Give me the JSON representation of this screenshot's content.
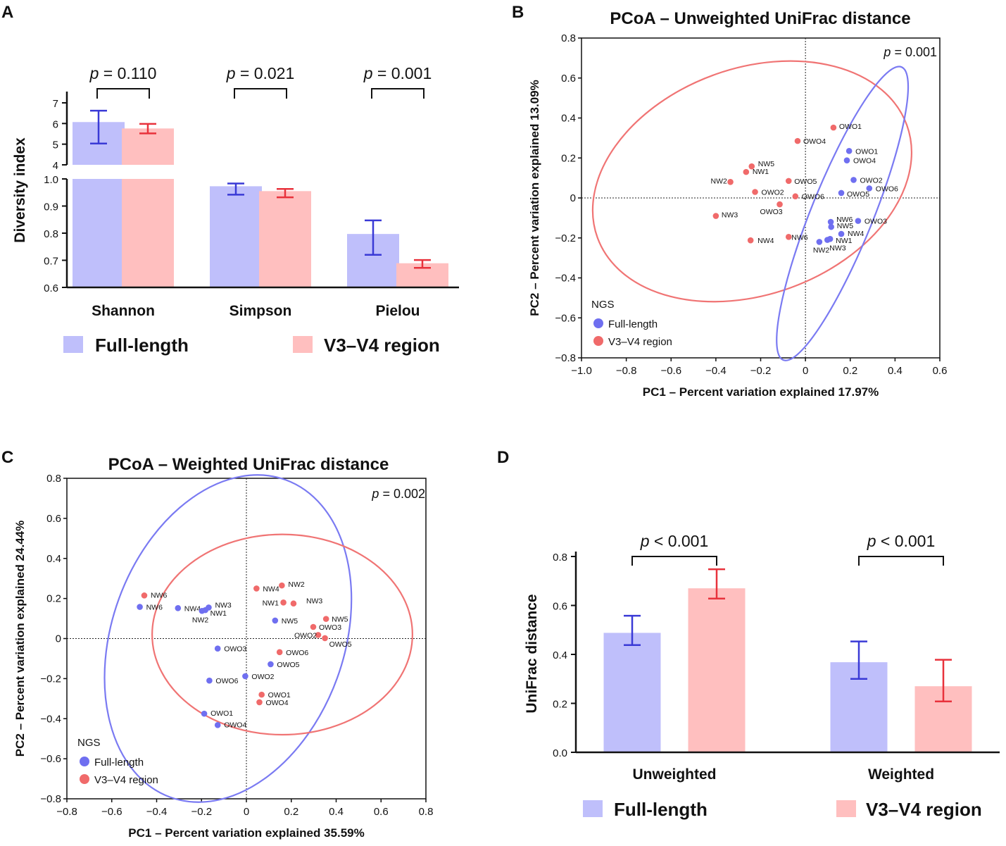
{
  "colors": {
    "full_bar": "#bfbffb",
    "v34_bar": "#ffbfbf",
    "full_line": "#3a3ad6",
    "v34_line": "#e8323c",
    "full_point": "#6f6ff0",
    "v34_point": "#f06a6a",
    "ellipse_full": "#7a7af2",
    "ellipse_v34": "#f07474"
  },
  "chart_data": [
    {
      "panel": "A",
      "type": "bar",
      "title": "",
      "ylabel": "Diversity index",
      "xlabel": "",
      "categories": [
        "Shannon",
        "Simpson",
        "Pielou"
      ],
      "series": [
        {
          "name": "Full-length",
          "values": [
            6.07,
            0.973,
            0.797
          ],
          "err_low": [
            5.03,
            0.942,
            0.72
          ],
          "err_high": [
            6.62,
            0.983,
            0.847
          ]
        },
        {
          "name": "V3–V4 region",
          "values": [
            5.76,
            0.955,
            0.689
          ],
          "err_low": [
            5.52,
            0.932,
            0.672
          ],
          "err_high": [
            5.98,
            0.963,
            0.701
          ]
        }
      ],
      "y_segments": [
        {
          "range": [
            4,
            7
          ],
          "ticks": [
            "4",
            "5",
            "6",
            "7"
          ]
        },
        {
          "range": [
            0.6,
            1.0
          ],
          "ticks": [
            "0.6",
            "0.7",
            "0.8",
            "0.9",
            "1.0"
          ]
        }
      ],
      "pvalues": [
        "0.110",
        "0.021",
        "0.001"
      ],
      "p_prefix": "p",
      "p_eq": " = ",
      "legend": [
        "Full-length",
        "V3–V4 region"
      ]
    },
    {
      "panel": "B",
      "type": "scatter",
      "title": "PCoA – Unweighted UniFrac distance",
      "xlabel": "PC1 – Percent variation explained 17.97%",
      "ylabel": "PC2 – Percent variation explained 13.09%",
      "xlim": [
        -1.0,
        0.6
      ],
      "ylim": [
        -0.8,
        0.8
      ],
      "xticks": [
        "−1.0",
        "−0.8",
        "−0.6",
        "−0.4",
        "−0.2",
        "0",
        "0.2",
        "0.4",
        "0.6"
      ],
      "yticks": [
        "−0.8",
        "−0.6",
        "−0.4",
        "−0.2",
        "0",
        "0.2",
        "0.4",
        "0.6",
        "0.8"
      ],
      "p_prefix": "p",
      "p_text": " = 0.001",
      "legend_title": "NGS",
      "legend": [
        "Full-length",
        "V3–V4 region"
      ],
      "series": [
        {
          "name": "Full-length",
          "points": [
            {
              "label": "OWO1",
              "x": 0.195,
              "y": 0.235
            },
            {
              "label": "OWO4",
              "x": 0.185,
              "y": 0.188
            },
            {
              "label": "OWO2",
              "x": 0.215,
              "y": 0.09
            },
            {
              "label": "OWO6",
              "x": 0.285,
              "y": 0.048
            },
            {
              "label": "OWO5",
              "x": 0.16,
              "y": 0.025
            },
            {
              "label": "OWO3",
              "x": 0.235,
              "y": -0.115
            },
            {
              "label": "NW6",
              "x": 0.113,
              "y": -0.12
            },
            {
              "label": "NW5",
              "x": 0.115,
              "y": -0.145
            },
            {
              "label": "NW4",
              "x": 0.16,
              "y": -0.18
            },
            {
              "label": "NW1",
              "x": 0.11,
              "y": -0.205
            },
            {
              "label": "NW2",
              "x": 0.062,
              "y": -0.22
            },
            {
              "label": "NW3",
              "x": 0.098,
              "y": -0.21
            }
          ]
        },
        {
          "name": "V3–V4 region",
          "points": [
            {
              "label": "OWO1",
              "x": 0.125,
              "y": 0.352
            },
            {
              "label": "OWO4",
              "x": -0.035,
              "y": 0.285
            },
            {
              "label": "NW5",
              "x": -0.24,
              "y": 0.158
            },
            {
              "label": "NW1",
              "x": -0.265,
              "y": 0.13
            },
            {
              "label": "NW2",
              "x": -0.335,
              "y": 0.08
            },
            {
              "label": "OWO5",
              "x": -0.075,
              "y": 0.085
            },
            {
              "label": "OWO2",
              "x": -0.225,
              "y": 0.03
            },
            {
              "label": "OWO6",
              "x": -0.045,
              "y": 0.008
            },
            {
              "label": "OWO3",
              "x": -0.115,
              "y": -0.032
            },
            {
              "label": "NW3",
              "x": -0.4,
              "y": -0.09
            },
            {
              "label": "NW6",
              "x": -0.075,
              "y": -0.195
            },
            {
              "label": "NW4",
              "x": -0.245,
              "y": -0.212
            }
          ]
        }
      ],
      "ellipses": [
        {
          "group": "V3–V4 region",
          "center": [
            -0.238,
            0.083
          ],
          "a": 0.735,
          "b": 0.566,
          "angle_deg": 20
        },
        {
          "group": "Full-length",
          "center": [
            0.165,
            -0.078
          ],
          "a": 0.705,
          "b": 0.155,
          "angle_deg": 68
        }
      ]
    },
    {
      "panel": "C",
      "type": "scatter",
      "title": "PCoA – Weighted UniFrac distance",
      "xlabel": "PC1 –  Percent variation explained 35.59%",
      "ylabel": "PC2 –  Percent variation explained 24.44%",
      "xlim": [
        -0.8,
        0.8
      ],
      "ylim": [
        -0.8,
        0.8
      ],
      "xticks": [
        "−0.8",
        "−0.6",
        "−0.4",
        "−0.2",
        "0",
        "0.2",
        "0.4",
        "0.6",
        "0.8"
      ],
      "yticks": [
        "−0.8",
        "−0.6",
        "−0.4",
        "−0.2",
        "0",
        "0.2",
        "0.4",
        "0.6",
        "0.8"
      ],
      "p_prefix": "p",
      "p_text": " = 0.002",
      "legend_title": "NGS",
      "legend": [
        "Full-length",
        "V3–V4 region"
      ],
      "series": [
        {
          "name": "Full-length",
          "points": [
            {
              "label": "NW6",
              "x": -0.475,
              "y": 0.158
            },
            {
              "label": "NW4",
              "x": -0.305,
              "y": 0.152
            },
            {
              "label": "NW3",
              "x": -0.168,
              "y": 0.155
            },
            {
              "label": "NW2",
              "x": -0.198,
              "y": 0.138
            },
            {
              "label": "NW1",
              "x": -0.183,
              "y": 0.142
            },
            {
              "label": "NW5",
              "x": 0.128,
              "y": 0.09
            },
            {
              "label": "OWO3",
              "x": -0.128,
              "y": -0.05
            },
            {
              "label": "OWO5",
              "x": 0.108,
              "y": -0.128
            },
            {
              "label": "OWO2",
              "x": -0.005,
              "y": -0.188
            },
            {
              "label": "OWO6",
              "x": -0.165,
              "y": -0.21
            },
            {
              "label": "OWO1",
              "x": -0.188,
              "y": -0.375
            },
            {
              "label": "OWO4",
              "x": -0.128,
              "y": -0.432
            }
          ]
        },
        {
          "name": "V3–V4 region",
          "points": [
            {
              "label": "NW6",
              "x": -0.455,
              "y": 0.215
            },
            {
              "label": "NW4",
              "x": 0.045,
              "y": 0.25
            },
            {
              "label": "NW2",
              "x": 0.158,
              "y": 0.265
            },
            {
              "label": "NW1",
              "x": 0.165,
              "y": 0.18
            },
            {
              "label": "NW3",
              "x": 0.21,
              "y": 0.175
            },
            {
              "label": "NW5",
              "x": 0.355,
              "y": 0.098
            },
            {
              "label": "OWO3",
              "x": 0.298,
              "y": 0.058
            },
            {
              "label": "OWO2",
              "x": 0.32,
              "y": 0.018
            },
            {
              "label": "OWO5",
              "x": 0.35,
              "y": 0.002
            },
            {
              "label": "OWO6",
              "x": 0.148,
              "y": -0.068
            },
            {
              "label": "OWO1",
              "x": 0.068,
              "y": -0.28
            },
            {
              "label": "OWO4",
              "x": 0.058,
              "y": -0.318
            }
          ]
        }
      ],
      "ellipses": [
        {
          "group": "Full-length",
          "center": [
            -0.082,
            -0.0
          ],
          "a": 0.752,
          "b": 0.58,
          "angle_deg": 70
        },
        {
          "group": "V3–V4 region",
          "center": [
            0.16,
            0.02
          ],
          "a": 0.58,
          "b": 0.5,
          "angle_deg": 0
        }
      ]
    },
    {
      "panel": "D",
      "type": "bar",
      "title": "",
      "ylabel": "UniFrac distance",
      "xlabel": "",
      "categories": [
        "Unweighted",
        "Weighted"
      ],
      "series": [
        {
          "name": "Full-length",
          "values": [
            0.488,
            0.368
          ],
          "err_low": [
            0.438,
            0.3
          ],
          "err_high": [
            0.558,
            0.453
          ]
        },
        {
          "name": "V3–V4 region",
          "values": [
            0.67,
            0.27
          ],
          "err_low": [
            0.628,
            0.208
          ],
          "err_high": [
            0.748,
            0.378
          ]
        }
      ],
      "ylim": [
        0.0,
        0.8
      ],
      "yticks": [
        "0.0",
        "0.2",
        "0.4",
        "0.6",
        "0.8"
      ],
      "pvalues": [
        "< 0.001",
        "< 0.001"
      ],
      "p_prefix": "p",
      "legend": [
        "Full-length",
        "V3–V4 region"
      ]
    }
  ],
  "panel_letters": [
    "A",
    "B",
    "C",
    "D"
  ]
}
